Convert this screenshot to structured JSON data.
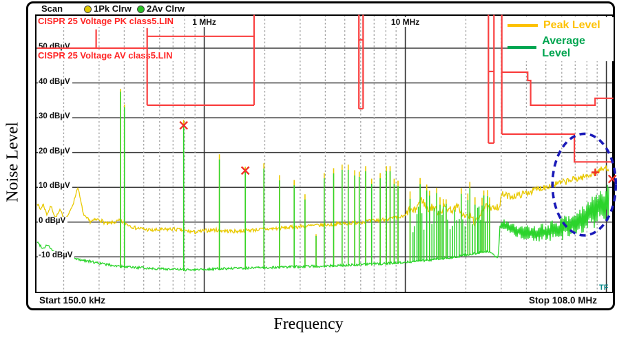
{
  "title_y": "Noise Level",
  "title_x": "Frequency",
  "scan": {
    "label": "Scan",
    "trace1": "1Pk Clrw",
    "trace2": "2Av Clrw",
    "trace1_color": "#e2ca00",
    "trace2_color": "#27c222"
  },
  "limit_labels": {
    "pk": "CISPR 25 Voltage PK class5.LIN",
    "av": "CISPR 25 Voltage AV class5.LIN"
  },
  "legend": {
    "peak": {
      "label": "Peak Level",
      "color": "#fdc101"
    },
    "average": {
      "label": "Average Level",
      "color": "#00a550"
    }
  },
  "axis": {
    "start": "Start 150.0 kHz",
    "stop": "Stop 108.0 MHz",
    "tf": "TF",
    "y_ticks": [
      {
        "db": 50,
        "label": "50 dBµV"
      },
      {
        "db": 40,
        "label": "40 dBµV"
      },
      {
        "db": 30,
        "label": "30 dBµV"
      },
      {
        "db": 20,
        "label": "20 dBµV"
      },
      {
        "db": 10,
        "label": "10 dBµV"
      },
      {
        "db": 0,
        "label": "0 dBµV"
      },
      {
        "db": -10,
        "label": "-10 dBµV"
      }
    ],
    "x_marks": [
      {
        "f": 1,
        "label": "1 MHz"
      },
      {
        "f": 10,
        "label": "10 MHz"
      }
    ]
  },
  "chart_data": {
    "type": "line",
    "title": "CISPR 25 conducted emission scan, peak and average detector",
    "xlabel": "Frequency",
    "ylabel": "Noise Level",
    "x_axis": {
      "scale": "log",
      "min_MHz": 0.15,
      "max_MHz": 108,
      "solid_gridlines_MHz": [
        1,
        10,
        100
      ]
    },
    "y_axis": {
      "unit": "dBµV",
      "min": -20,
      "max": 60,
      "gridline_step": 10
    },
    "colors": {
      "peak_trace": "#e9c900",
      "average_trace": "#2bd42b",
      "limit_line": "#f94040",
      "marker": "#f03028",
      "grid_solid": "#3c3c3c",
      "grid_dashed": "#a2a2a2"
    },
    "series": [
      {
        "name": "Peak Level",
        "anchors_MHz_dBuV": [
          [
            0.148,
            5.5
          ],
          [
            0.153,
            3.5
          ],
          [
            0.158,
            5.2
          ],
          [
            0.165,
            2.2
          ],
          [
            0.173,
            4.6
          ],
          [
            0.182,
            1.2
          ],
          [
            0.192,
            3.4
          ],
          [
            0.203,
            0.6
          ],
          [
            0.215,
            3.0
          ],
          [
            0.225,
            6.0
          ],
          [
            0.235,
            10.2
          ],
          [
            0.243,
            6.0
          ],
          [
            0.252,
            1.8
          ],
          [
            0.27,
            0.2
          ],
          [
            0.3,
            0.8
          ],
          [
            0.33,
            -0.6
          ],
          [
            0.38,
            0.4
          ],
          [
            0.45,
            -1.6
          ],
          [
            0.55,
            -2.4
          ],
          [
            0.7,
            -2.0
          ],
          [
            0.9,
            -2.9
          ],
          [
            1.1,
            -2.2
          ],
          [
            1.4,
            -2.7
          ],
          [
            1.8,
            -2.2
          ],
          [
            2.2,
            -1.9
          ],
          [
            2.7,
            -1.5
          ],
          [
            3.3,
            -1.1
          ],
          [
            4.0,
            -0.8
          ],
          [
            5.0,
            -0.4
          ],
          [
            6.0,
            0.0
          ],
          [
            7.0,
            0.4
          ],
          [
            8.0,
            0.8
          ],
          [
            9.0,
            1.2
          ],
          [
            10.0,
            1.7
          ],
          [
            10.8,
            3.2
          ],
          [
            11.5,
            5.0
          ],
          [
            12.2,
            5.8
          ],
          [
            13.0,
            4.4
          ],
          [
            14.0,
            3.1
          ],
          [
            15.0,
            3.9
          ],
          [
            16.0,
            3.2
          ],
          [
            17.0,
            4.5
          ],
          [
            18.0,
            3.6
          ],
          [
            19.0,
            3.0
          ],
          [
            20.0,
            2.1
          ],
          [
            21.0,
            1.0
          ],
          [
            22.0,
            0.3
          ],
          [
            23.0,
            1.3
          ],
          [
            24.0,
            2.9
          ],
          [
            25.0,
            4.3
          ],
          [
            26.0,
            4.6
          ],
          [
            27.0,
            3.5
          ],
          [
            28.0,
            3.8
          ],
          [
            29.2,
            4.4
          ],
          [
            30.2,
            8.0
          ],
          [
            33.0,
            7.4
          ],
          [
            36.0,
            7.6
          ],
          [
            40.0,
            8.4
          ],
          [
            45.0,
            9.4
          ],
          [
            50.0,
            10.2
          ],
          [
            55.0,
            10.8
          ],
          [
            60.0,
            11.3
          ],
          [
            65.0,
            11.9
          ],
          [
            70.0,
            12.4
          ],
          [
            75.0,
            12.8
          ],
          [
            80.0,
            13.2
          ],
          [
            85.0,
            14.0
          ],
          [
            88.0,
            14.4
          ],
          [
            92.0,
            14.8
          ],
          [
            96.0,
            15.2
          ],
          [
            100.0,
            15.6
          ],
          [
            104.0,
            15.2
          ],
          [
            108.0,
            15.0
          ]
        ]
      },
      {
        "name": "Average Level",
        "anchors_MHz_dBuV": [
          [
            0.148,
            -5.8
          ],
          [
            0.158,
            -7.6
          ],
          [
            0.166,
            -6.4
          ],
          [
            0.178,
            -8.6
          ],
          [
            0.2,
            -9.6
          ],
          [
            0.23,
            -10.6
          ],
          [
            0.27,
            -11.3
          ],
          [
            0.32,
            -12.1
          ],
          [
            0.4,
            -12.9
          ],
          [
            0.55,
            -13.3
          ],
          [
            0.8,
            -13.7
          ],
          [
            1.2,
            -13.4
          ],
          [
            2.0,
            -13.1
          ],
          [
            3.0,
            -12.8
          ],
          [
            4.5,
            -12.5
          ],
          [
            6.0,
            -12.2
          ],
          [
            8.0,
            -11.9
          ],
          [
            10.0,
            -11.5
          ],
          [
            12.0,
            -11.1
          ],
          [
            14.0,
            -10.7
          ],
          [
            16.0,
            -10.3
          ],
          [
            18.0,
            -9.9
          ],
          [
            20.0,
            -9.4
          ],
          [
            22.0,
            -9.1
          ],
          [
            24.0,
            -8.7
          ],
          [
            26.0,
            -8.3
          ],
          [
            28.0,
            -10.0
          ],
          [
            29.0,
            -10.2
          ],
          [
            29.6,
            -0.3
          ],
          [
            30.2,
            -0.5
          ],
          [
            33.0,
            -1.5
          ],
          [
            37.0,
            -2.8
          ],
          [
            42.0,
            -3.2
          ],
          [
            47.0,
            -3.0
          ],
          [
            52.0,
            -2.6
          ],
          [
            57.0,
            -2.2
          ],
          [
            62.0,
            -1.6
          ],
          [
            67.0,
            -0.8
          ],
          [
            72.0,
            0.2
          ],
          [
            77.0,
            1.2
          ],
          [
            82.0,
            2.4
          ],
          [
            87.0,
            3.4
          ],
          [
            92.0,
            4.6
          ],
          [
            97.0,
            5.6
          ],
          [
            102.0,
            6.6
          ],
          [
            108.0,
            7.8
          ]
        ]
      }
    ],
    "spikes_MHz_topdBuV": [
      [
        0.383,
        37.5,
        0.8
      ],
      [
        0.401,
        33.0,
        0.8
      ],
      [
        0.79,
        28.2,
        1.2
      ],
      [
        1.19,
        18.0,
        1.5
      ],
      [
        1.6,
        14.4,
        1.5
      ],
      [
        1.98,
        15.4,
        1.5
      ],
      [
        2.37,
        12.0,
        1.5
      ],
      [
        2.8,
        10.6,
        1.5
      ],
      [
        3.17,
        6.5,
        1.5
      ],
      [
        3.6,
        -4.0,
        0.5
      ],
      [
        3.95,
        12.6,
        1.5
      ],
      [
        4.4,
        14.0,
        1.5
      ],
      [
        4.85,
        15.0,
        1.5
      ],
      [
        5.2,
        15.0,
        1.5
      ],
      [
        5.6,
        13.4,
        1.5
      ],
      [
        5.9,
        13.0,
        1.5
      ],
      [
        6.35,
        14.6,
        1.5
      ],
      [
        6.8,
        11.0,
        1.5
      ],
      [
        7.5,
        12.6,
        1.5
      ],
      [
        8.05,
        14.6,
        1.5
      ],
      [
        8.4,
        14.6,
        1.5
      ],
      [
        8.8,
        11.0,
        1.5
      ],
      [
        9.2,
        10.4,
        1.5
      ]
    ],
    "comb_region": {
      "f_start_MHz": 10.4,
      "f_end_MHz": 25.8,
      "top_db_min": -3.5,
      "top_db_max": 11.0
    },
    "limit_segments_MHz_dBuV": [
      [
        [
          0.148,
          50
        ],
        [
          0.52,
          50
        ]
      ],
      [
        [
          0.29,
          55.4
        ],
        [
          0.29,
          50.2
        ]
      ],
      [
        [
          0.52,
          55.8
        ],
        [
          0.52,
          33.6
        ]
      ],
      [
        [
          0.52,
          53.4
        ],
        [
          1.77,
          53.4
        ]
      ],
      [
        [
          0.52,
          33.6
        ],
        [
          1.77,
          33.6
        ]
      ],
      [
        [
          1.77,
          59.6
        ],
        [
          1.77,
          33.6
        ]
      ],
      [
        [
          5.88,
          59.6
        ],
        [
          5.88,
          32.6
        ]
      ],
      [
        [
          6.17,
          59.6
        ],
        [
          6.17,
          32.6
        ]
      ],
      [
        [
          5.88,
          52.4
        ],
        [
          6.17,
          52.4
        ]
      ],
      [
        [
          5.88,
          32.6
        ],
        [
          6.17,
          32.6
        ]
      ],
      [
        [
          25.9,
          59.6
        ],
        [
          25.9,
          22.7
        ]
      ],
      [
        [
          27.6,
          59.6
        ],
        [
          27.6,
          22.7
        ]
      ],
      [
        [
          25.9,
          43.3
        ],
        [
          27.6,
          43.3
        ]
      ],
      [
        [
          25.9,
          22.7
        ],
        [
          27.6,
          22.7
        ]
      ],
      [
        [
          30.2,
          59.6
        ],
        [
          30.2,
          25.3
        ]
      ],
      [
        [
          30.2,
          43.1
        ],
        [
          40.6,
          43.1
        ],
        [
          40.6,
          40.7
        ],
        [
          42.0,
          40.7
        ],
        [
          42.0,
          33.6
        ],
        [
          87.9,
          33.6
        ],
        [
          87.9,
          35.6
        ],
        [
          108.3,
          35.6
        ]
      ],
      [
        [
          30.2,
          25.3
        ],
        [
          69.3,
          25.3
        ],
        [
          69.3,
          17.3
        ],
        [
          107.5,
          17.3
        ]
      ]
    ],
    "markers": [
      {
        "f": 0.79,
        "db": 27.8,
        "type": "x"
      },
      {
        "f": 1.6,
        "db": 14.8,
        "type": "x"
      },
      {
        "f": 88.0,
        "db": 14.3,
        "type": "plus"
      },
      {
        "f": 107.0,
        "db": 12.4,
        "type": "x"
      }
    ],
    "annotations": [
      {
        "shape": "ellipse",
        "style": "dashed",
        "color": "#1a1ab8",
        "f_center_MHz": 77.5,
        "db_center": 10.8,
        "rx_decades": 0.1575,
        "ry_db": 14.6
      }
    ]
  }
}
